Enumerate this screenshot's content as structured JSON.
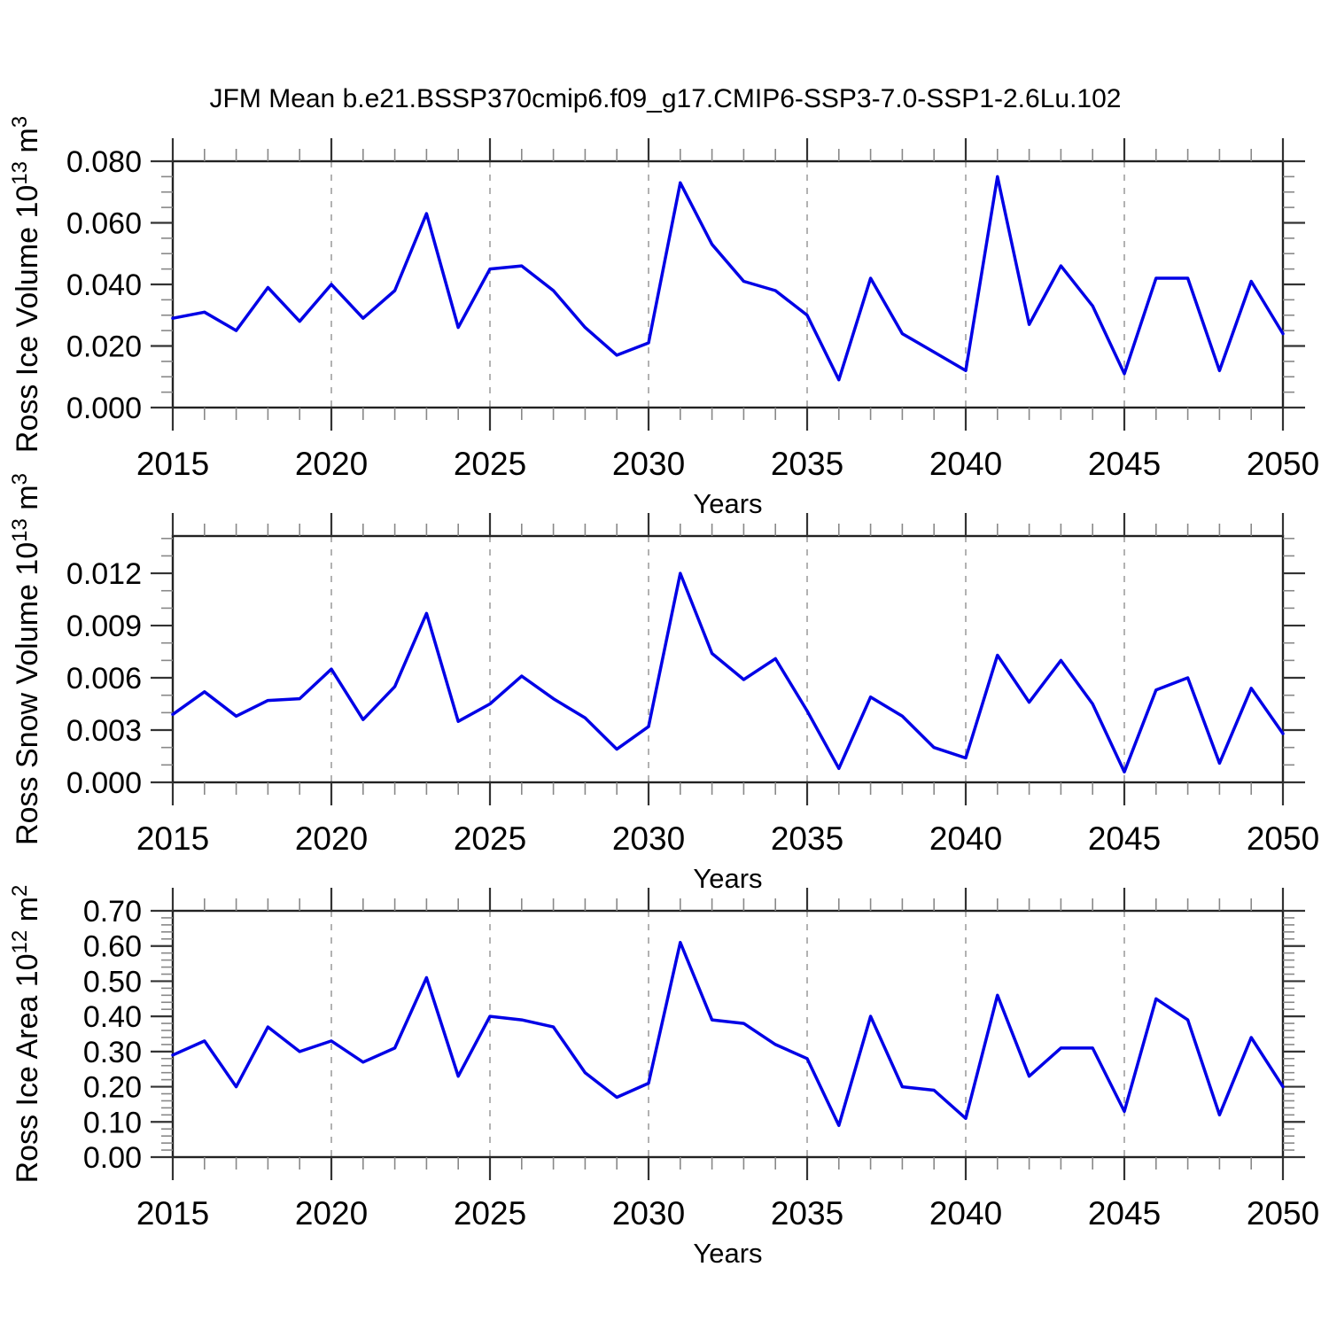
{
  "title": "JFM Mean b.e21.BSSP370cmip6.f09_g17.CMIP6-SSP3-7.0-SSP1-2.6Lu.102",
  "xlabel": "Years",
  "colors": {
    "line": "#0000E6",
    "axis": "#222222",
    "major_tick": "#333333",
    "minor_tick": "#888888",
    "grid": "#999999",
    "background": "#FFFFFF"
  },
  "chart_data": [
    {
      "id": "ross-ice-volume",
      "type": "line",
      "ylabel_parts": [
        {
          "t": "Ross Ice Volume 10"
        },
        {
          "t": "13",
          "sup": true
        },
        {
          "t": " m"
        },
        {
          "t": "3",
          "sup": true
        }
      ],
      "xlabel": "Years",
      "x_tick_labels": [
        "2015",
        "2020",
        "2025",
        "2030",
        "2035",
        "2040",
        "2045",
        "2050"
      ],
      "x_minor_step": 1,
      "grid_x": [
        2020,
        2025,
        2030,
        2035,
        2040,
        2045
      ],
      "xlim": [
        2015,
        2050
      ],
      "y_tick_values": [
        0.0,
        0.02,
        0.04,
        0.06,
        0.08
      ],
      "y_tick_labels": [
        "0.000",
        "0.020",
        "0.040",
        "0.060",
        "0.080"
      ],
      "y_minor_step": 0.005,
      "y_axis_max": 0.08,
      "x": [
        2015,
        2016,
        2017,
        2018,
        2019,
        2020,
        2021,
        2022,
        2023,
        2024,
        2025,
        2026,
        2027,
        2028,
        2029,
        2030,
        2031,
        2032,
        2033,
        2034,
        2035,
        2036,
        2037,
        2038,
        2039,
        2040,
        2041,
        2042,
        2043,
        2044,
        2045,
        2046,
        2047,
        2048,
        2049,
        2050
      ],
      "values": [
        0.029,
        0.031,
        0.025,
        0.039,
        0.028,
        0.04,
        0.029,
        0.038,
        0.063,
        0.026,
        0.045,
        0.046,
        0.038,
        0.026,
        0.017,
        0.021,
        0.073,
        0.053,
        0.041,
        0.038,
        0.03,
        0.009,
        0.042,
        0.024,
        0.018,
        0.012,
        0.075,
        0.027,
        0.046,
        0.033,
        0.011,
        0.042,
        0.042,
        0.012,
        0.041,
        0.024
      ]
    },
    {
      "id": "ross-snow-volume",
      "type": "line",
      "ylabel_parts": [
        {
          "t": "Ross Snow Volume 10"
        },
        {
          "t": "13",
          "sup": true
        },
        {
          "t": " m"
        },
        {
          "t": "3",
          "sup": true
        }
      ],
      "xlabel": "Years",
      "x_tick_labels": [
        "2015",
        "2020",
        "2025",
        "2030",
        "2035",
        "2040",
        "2045",
        "2050"
      ],
      "x_minor_step": 1,
      "grid_x": [
        2020,
        2025,
        2030,
        2035,
        2040,
        2045
      ],
      "xlim": [
        2015,
        2050
      ],
      "y_tick_values": [
        0.0,
        0.003,
        0.006,
        0.009,
        0.012
      ],
      "y_tick_labels": [
        "0.000",
        "0.003",
        "0.006",
        "0.009",
        "0.012"
      ],
      "y_minor_step": 0.001,
      "y_axis_max": 0.01414,
      "x": [
        2015,
        2016,
        2017,
        2018,
        2019,
        2020,
        2021,
        2022,
        2023,
        2024,
        2025,
        2026,
        2027,
        2028,
        2029,
        2030,
        2031,
        2032,
        2033,
        2034,
        2035,
        2036,
        2037,
        2038,
        2039,
        2040,
        2041,
        2042,
        2043,
        2044,
        2045,
        2046,
        2047,
        2048,
        2049,
        2050
      ],
      "values": [
        0.0039,
        0.0052,
        0.0038,
        0.0047,
        0.0048,
        0.0065,
        0.0036,
        0.0055,
        0.0097,
        0.0035,
        0.0045,
        0.0061,
        0.0048,
        0.0037,
        0.0019,
        0.0032,
        0.012,
        0.0074,
        0.0059,
        0.0071,
        0.0041,
        0.0008,
        0.0049,
        0.0038,
        0.002,
        0.0014,
        0.0073,
        0.0046,
        0.007,
        0.0045,
        0.0006,
        0.0053,
        0.006,
        0.0011,
        0.0054,
        0.0028
      ]
    },
    {
      "id": "ross-ice-area",
      "type": "line",
      "ylabel_parts": [
        {
          "t": "Ross Ice Area 10"
        },
        {
          "t": "12",
          "sup": true
        },
        {
          "t": " m"
        },
        {
          "t": "2",
          "sup": true
        }
      ],
      "xlabel": "Years",
      "x_tick_labels": [
        "2015",
        "2020",
        "2025",
        "2030",
        "2035",
        "2040",
        "2045",
        "2050"
      ],
      "x_minor_step": 1,
      "grid_x": [
        2020,
        2025,
        2030,
        2035,
        2040,
        2045
      ],
      "xlim": [
        2015,
        2050
      ],
      "y_tick_values": [
        0.0,
        0.1,
        0.2,
        0.3,
        0.4,
        0.5,
        0.6,
        0.7
      ],
      "y_tick_labels": [
        "0.00",
        "0.10",
        "0.20",
        "0.30",
        "0.40",
        "0.50",
        "0.60",
        "0.70"
      ],
      "y_minor_step": 0.02,
      "y_axis_max": 0.7,
      "x": [
        2015,
        2016,
        2017,
        2018,
        2019,
        2020,
        2021,
        2022,
        2023,
        2024,
        2025,
        2026,
        2027,
        2028,
        2029,
        2030,
        2031,
        2032,
        2033,
        2034,
        2035,
        2036,
        2037,
        2038,
        2039,
        2040,
        2041,
        2042,
        2043,
        2044,
        2045,
        2046,
        2047,
        2048,
        2049,
        2050
      ],
      "values": [
        0.29,
        0.33,
        0.2,
        0.37,
        0.3,
        0.33,
        0.27,
        0.31,
        0.51,
        0.23,
        0.4,
        0.39,
        0.37,
        0.24,
        0.17,
        0.21,
        0.61,
        0.39,
        0.38,
        0.32,
        0.28,
        0.09,
        0.4,
        0.2,
        0.19,
        0.11,
        0.46,
        0.23,
        0.31,
        0.31,
        0.13,
        0.45,
        0.39,
        0.12,
        0.34,
        0.2
      ]
    }
  ]
}
